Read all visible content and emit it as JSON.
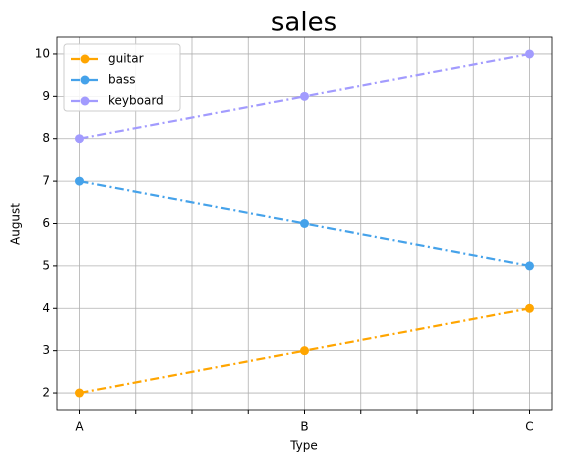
{
  "chart_data": {
    "type": "line",
    "title": "sales",
    "x_label": "Type",
    "y_label": "August",
    "categories": [
      "A",
      "B",
      "C"
    ],
    "series": [
      {
        "name": "guitar",
        "color": "#ffa500",
        "values": [
          2,
          3,
          4
        ]
      },
      {
        "name": "bass",
        "color": "#45a2ea",
        "values": [
          7,
          6,
          5
        ]
      },
      {
        "name": "keyboard",
        "color": "#a29bfe",
        "values": [
          8,
          9,
          10
        ]
      }
    ],
    "xlim": [
      -0.1,
      2.1
    ],
    "minor_xticks": [
      0.25,
      0.5,
      0.75,
      1.25,
      1.5,
      1.75
    ],
    "ylim": [
      1.6,
      10.4
    ],
    "yticks": [
      2,
      3,
      4,
      5,
      6,
      7,
      8,
      9,
      10
    ],
    "grid": true,
    "legend": "upper-left",
    "line_style": "dashdot"
  }
}
